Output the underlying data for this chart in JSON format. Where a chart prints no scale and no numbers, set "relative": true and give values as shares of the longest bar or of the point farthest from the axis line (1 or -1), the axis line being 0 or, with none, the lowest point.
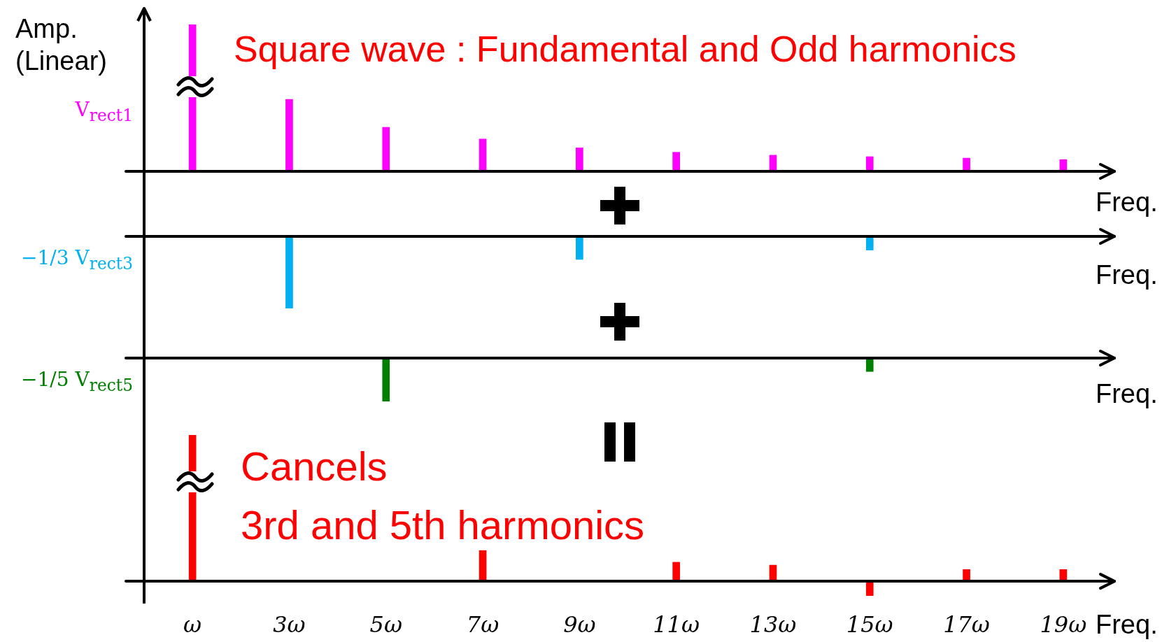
{
  "chart_data": [
    {
      "type": "bar",
      "title": "Square wave : Fundamental and Odd harmonics",
      "ylabel": "Amp. (Linear)",
      "xlabel": "Freq.",
      "relative": true,
      "tick_labels": false,
      "legend": false,
      "grid": false,
      "categories": [
        null,
        null,
        null,
        null,
        null,
        null,
        null,
        null,
        null,
        null
      ],
      "series": [
        {
          "name": "V$_{rect1}$",
          "color": "#ff00ff",
          "values": [
            1,
            0.49,
            0.3,
            0.22,
            0.16,
            0.13,
            0.11,
            0.1,
            0.09,
            0.08
          ]
        }
      ]
    },
    {
      "type": "bar",
      "xlabel": "Freq.",
      "relative": true,
      "tick_labels": false,
      "legend": false,
      "grid": false,
      "categories": [
        null,
        null,
        null,
        null,
        null,
        null,
        null,
        null,
        null,
        null
      ],
      "series": [
        {
          "name": "−1/3 V$_{rect3}$",
          "color": "#00b0f0",
          "values": [
            null,
            -1,
            null,
            null,
            -0.32,
            null,
            null,
            -0.19,
            null,
            null
          ]
        }
      ]
    },
    {
      "type": "bar",
      "xlabel": "Freq.",
      "relative": true,
      "tick_labels": false,
      "legend": false,
      "grid": false,
      "categories": [
        null,
        null,
        null,
        null,
        null,
        null,
        null,
        null,
        null,
        null
      ],
      "series": [
        {
          "name": "−1/5 V$_{rect5}$",
          "color": "#008000",
          "values": [
            null,
            null,
            -1,
            null,
            null,
            null,
            null,
            -0.31,
            null,
            null
          ]
        }
      ]
    },
    {
      "type": "bar",
      "xlabel": "Freq.",
      "relative": true,
      "tick_labels": "x",
      "legend": false,
      "grid": false,
      "annotations": [
        "Cancels\n3rd and 5th harmonics"
      ],
      "categories": [
        "ω",
        "3ω",
        "5ω",
        "7ω",
        "9ω",
        "11ω",
        "13ω",
        "15ω",
        "17ω",
        "19ω"
      ],
      "series": [
        {
          "color": "#ff0000",
          "values": [
            1,
            null,
            null,
            0.21,
            null,
            0.13,
            0.11,
            -0.1,
            0.08,
            0.08
          ]
        }
      ]
    }
  ]
}
